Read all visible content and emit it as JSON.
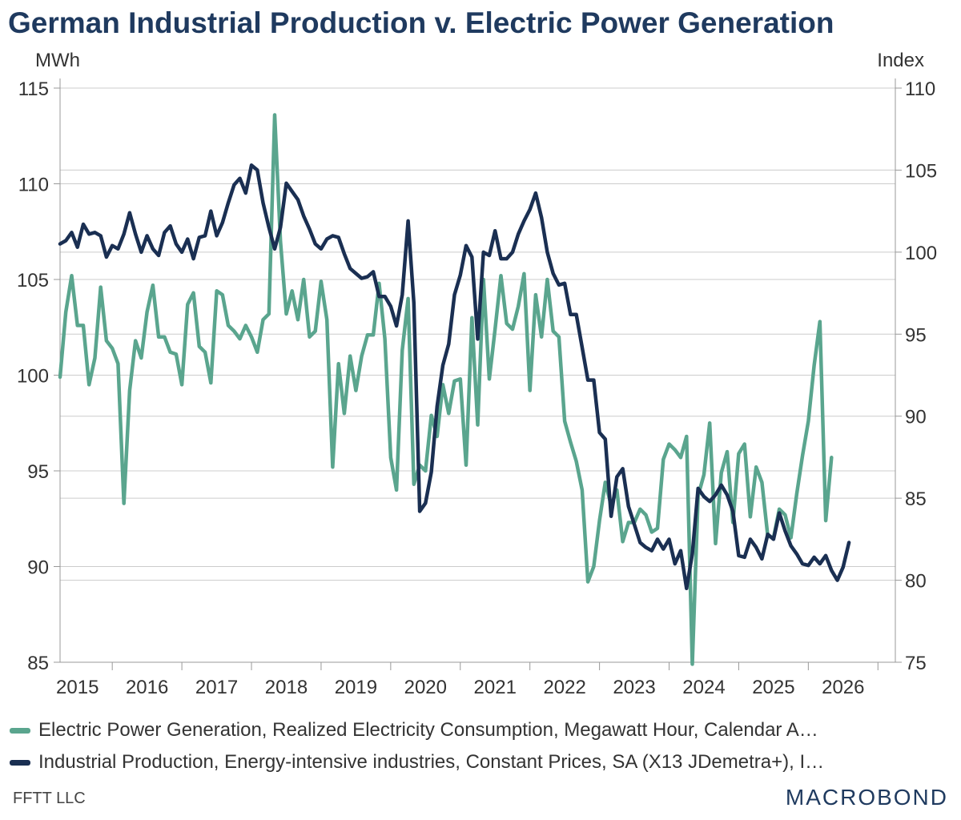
{
  "colors": {
    "generation": "#5aa58e",
    "production": "#1a2f52",
    "title": "#1f3a5f"
  },
  "source": "FFTT LLC",
  "brand": "MACROBOND",
  "chart_data": {
    "type": "line",
    "title": "German Industrial Production v. Electric Power Generation",
    "left_axis_label": "MWh",
    "right_axis_label": "Index",
    "left_ylim": [
      85,
      115
    ],
    "right_ylim": [
      75,
      110
    ],
    "left_ticks": [
      85,
      90,
      95,
      100,
      105,
      110,
      115
    ],
    "right_ticks": [
      75,
      80,
      85,
      90,
      95,
      100,
      105,
      110
    ],
    "xlim": [
      "2014-04",
      "2026-04"
    ],
    "year_labels": [
      "2015",
      "2016",
      "2017",
      "2018",
      "2019",
      "2020",
      "2021",
      "2022",
      "2023",
      "2024",
      "2025",
      "2026"
    ],
    "grid": "horizontal",
    "legend_position": "bottom",
    "series": [
      {
        "name": "Electric Power Generation, Realized Electricity Consumption, Megawatt Hour, Calendar A…",
        "axis": "left",
        "color": "#5aa58e",
        "start": "2014-04",
        "values": [
          99.9,
          103.3,
          105.2,
          102.6,
          102.6,
          99.5,
          100.9,
          104.6,
          101.8,
          101.4,
          100.6,
          93.3,
          99.2,
          101.8,
          100.9,
          103.3,
          104.7,
          102.0,
          102.0,
          101.2,
          101.1,
          99.5,
          103.7,
          104.3,
          101.5,
          101.2,
          99.6,
          104.4,
          104.2,
          102.6,
          102.3,
          101.9,
          102.6,
          102.0,
          101.2,
          102.9,
          103.2,
          113.6,
          107.0,
          103.2,
          104.4,
          102.9,
          105.0,
          102.0,
          102.3,
          104.9,
          102.9,
          95.2,
          100.6,
          98.0,
          101.0,
          99.2,
          101.0,
          102.1,
          102.1,
          104.8,
          101.9,
          95.7,
          94.0,
          101.3,
          104.0,
          94.3,
          95.3,
          95.0,
          97.9,
          96.8,
          99.5,
          98.0,
          99.7,
          99.8,
          95.3,
          103.0,
          97.4,
          105.0,
          99.8,
          102.4,
          105.2,
          102.7,
          102.4,
          103.6,
          105.3,
          99.2,
          104.2,
          102.0,
          105.0,
          102.3,
          102.0,
          97.6,
          96.5,
          95.5,
          94.0,
          89.2,
          90.0,
          92.4,
          94.4,
          93.2,
          94.0,
          91.3,
          92.3,
          92.3,
          93.0,
          92.7,
          91.8,
          92.0,
          95.6,
          96.4,
          96.1,
          95.7,
          96.8,
          84.9,
          93.7,
          94.8,
          97.5,
          91.2,
          94.9,
          96.0,
          92.3,
          95.9,
          96.4,
          92.6,
          95.2,
          94.4,
          91.6,
          91.5,
          93.0,
          92.7,
          91.5,
          93.8,
          95.8,
          97.6,
          100.5,
          102.8,
          92.4,
          95.7
        ]
      },
      {
        "name": "Industrial Production, Energy-intensive industries, Constant Prices, SA (X13 JDemetra+), I…",
        "axis": "right",
        "color": "#1a2f52",
        "start": "2014-04",
        "values": [
          100.5,
          100.7,
          101.2,
          100.3,
          101.7,
          101.1,
          101.2,
          101.0,
          99.7,
          100.4,
          100.2,
          101.1,
          102.4,
          101.1,
          100.0,
          101.0,
          100.2,
          99.8,
          101.2,
          101.6,
          100.5,
          100.0,
          100.8,
          99.6,
          100.9,
          101.0,
          102.5,
          101.0,
          101.8,
          103.0,
          104.1,
          104.5,
          103.6,
          105.3,
          105.0,
          103.0,
          101.5,
          100.2,
          101.5,
          104.2,
          103.7,
          103.2,
          102.2,
          101.4,
          100.5,
          100.2,
          100.8,
          101.0,
          100.9,
          99.9,
          99.0,
          98.7,
          98.4,
          98.5,
          98.8,
          97.3,
          97.3,
          96.7,
          95.5,
          97.4,
          101.9,
          96.9,
          84.2,
          84.7,
          86.6,
          90.6,
          93.1,
          94.4,
          97.4,
          98.6,
          100.4,
          99.7,
          94.7,
          100.0,
          99.8,
          101.3,
          99.6,
          99.6,
          100.0,
          101.1,
          101.9,
          102.6,
          103.6,
          102.1,
          100.0,
          98.7,
          98.0,
          98.1,
          96.2,
          96.2,
          94.2,
          92.2,
          92.2,
          89.0,
          88.6,
          83.9,
          86.3,
          86.8,
          84.5,
          83.4,
          82.3,
          82.0,
          81.8,
          82.5,
          81.9,
          82.5,
          81.0,
          81.8,
          79.5,
          81.6,
          85.6,
          85.1,
          84.8,
          85.2,
          85.8,
          85.2,
          84.2,
          81.5,
          81.4,
          82.5,
          82.0,
          81.3,
          82.8,
          82.5,
          84.1,
          83.0,
          82.1,
          81.6,
          81.0,
          80.9,
          81.4,
          81.0,
          81.5,
          80.6,
          80.0,
          80.8,
          82.3
        ]
      }
    ]
  }
}
